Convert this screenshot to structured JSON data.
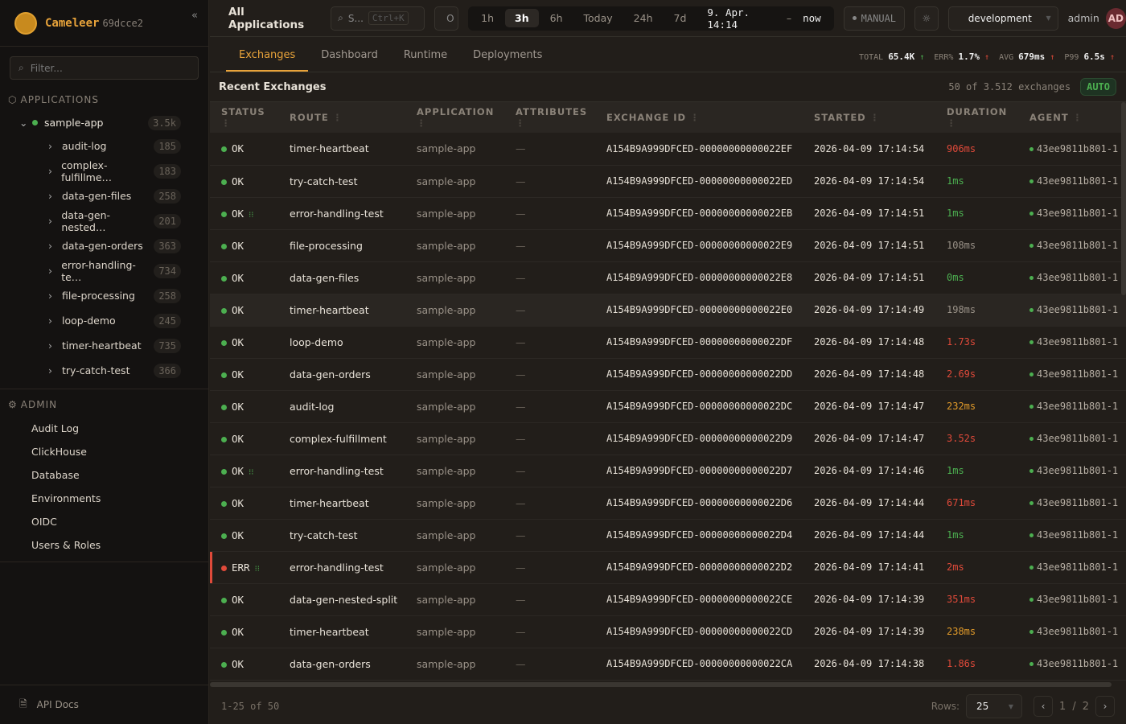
{
  "brand": {
    "name": "Cameleer",
    "version": "69dcce2"
  },
  "sidebar": {
    "filter_placeholder": "Filter...",
    "applications_label": "APPLICATIONS",
    "app": {
      "name": "sample-app",
      "count": "3.5k"
    },
    "routes": [
      {
        "name": "audit-log",
        "count": "185"
      },
      {
        "name": "complex-fulfillme…",
        "count": "183"
      },
      {
        "name": "data-gen-files",
        "count": "258"
      },
      {
        "name": "data-gen-nested…",
        "count": "201"
      },
      {
        "name": "data-gen-orders",
        "count": "363"
      },
      {
        "name": "error-handling-te…",
        "count": "734"
      },
      {
        "name": "file-processing",
        "count": "258"
      },
      {
        "name": "loop-demo",
        "count": "245"
      },
      {
        "name": "timer-heartbeat",
        "count": "735"
      },
      {
        "name": "try-catch-test",
        "count": "366"
      }
    ],
    "admin_label": "ADMIN",
    "admin_items": [
      "Audit Log",
      "ClickHouse",
      "Database",
      "Environments",
      "OIDC",
      "Users & Roles"
    ],
    "api_docs": "API Docs"
  },
  "header": {
    "title": "All Applications",
    "search_placeholder": "S...",
    "search_shortcut": "Ctrl+K",
    "status_label": "O",
    "ranges": [
      "1h",
      "3h",
      "6h",
      "Today",
      "24h",
      "7d"
    ],
    "active_range": "3h",
    "range_from": "9. Apr. 14:14",
    "range_sep": "–",
    "range_to": "now",
    "manual_label": "MANUAL",
    "environment": "development",
    "user": "admin",
    "avatar": "AD"
  },
  "tabs": [
    "Exchanges",
    "Dashboard",
    "Runtime",
    "Deployments"
  ],
  "active_tab": "Exchanges",
  "kpis": [
    {
      "label": "TOTAL",
      "value": "65.4K",
      "trend": "up",
      "color": "#4caf50"
    },
    {
      "label": "ERR%",
      "value": "1.7%",
      "trend": "up",
      "color": "#e04a3a"
    },
    {
      "label": "AVG",
      "value": "679ms",
      "trend": "up",
      "color": "#e04a3a"
    },
    {
      "label": "P99",
      "value": "6.5s",
      "trend": "up",
      "color": "#e04a3a"
    }
  ],
  "recent": {
    "title": "Recent Exchanges",
    "count": "50 of 3.512 exchanges",
    "auto": "AUTO"
  },
  "table": {
    "columns": [
      "STATUS",
      "ROUTE",
      "APPLICATION",
      "ATTRIBUTES",
      "EXCHANGE ID",
      "STARTED",
      "DURATION",
      "AGENT"
    ],
    "rows": [
      {
        "status": "OK",
        "trace": false,
        "route": "timer-heartbeat",
        "app": "sample-app",
        "attr": "—",
        "id": "A154B9A999DFCED-00000000000022EF",
        "started": "2026-04-09 17:14:54",
        "duration": "906ms",
        "dc": "red",
        "agent": "43ee9811b801-1"
      },
      {
        "status": "OK",
        "trace": false,
        "route": "try-catch-test",
        "app": "sample-app",
        "attr": "—",
        "id": "A154B9A999DFCED-00000000000022ED",
        "started": "2026-04-09 17:14:54",
        "duration": "1ms",
        "dc": "green",
        "agent": "43ee9811b801-1"
      },
      {
        "status": "OK",
        "trace": true,
        "route": "error-handling-test",
        "app": "sample-app",
        "attr": "—",
        "id": "A154B9A999DFCED-00000000000022EB",
        "started": "2026-04-09 17:14:51",
        "duration": "1ms",
        "dc": "green",
        "agent": "43ee9811b801-1"
      },
      {
        "status": "OK",
        "trace": false,
        "route": "file-processing",
        "app": "sample-app",
        "attr": "—",
        "id": "A154B9A999DFCED-00000000000022E9",
        "started": "2026-04-09 17:14:51",
        "duration": "108ms",
        "dc": "grey",
        "agent": "43ee9811b801-1"
      },
      {
        "status": "OK",
        "trace": false,
        "route": "data-gen-files",
        "app": "sample-app",
        "attr": "—",
        "id": "A154B9A999DFCED-00000000000022E8",
        "started": "2026-04-09 17:14:51",
        "duration": "0ms",
        "dc": "green",
        "agent": "43ee9811b801-1"
      },
      {
        "status": "OK",
        "trace": false,
        "route": "timer-heartbeat",
        "app": "sample-app",
        "attr": "—",
        "id": "A154B9A999DFCED-00000000000022E0",
        "started": "2026-04-09 17:14:49",
        "duration": "198ms",
        "dc": "grey",
        "agent": "43ee9811b801-1",
        "hl": true
      },
      {
        "status": "OK",
        "trace": false,
        "route": "loop-demo",
        "app": "sample-app",
        "attr": "—",
        "id": "A154B9A999DFCED-00000000000022DF",
        "started": "2026-04-09 17:14:48",
        "duration": "1.73s",
        "dc": "red",
        "agent": "43ee9811b801-1"
      },
      {
        "status": "OK",
        "trace": false,
        "route": "data-gen-orders",
        "app": "sample-app",
        "attr": "—",
        "id": "A154B9A999DFCED-00000000000022DD",
        "started": "2026-04-09 17:14:48",
        "duration": "2.69s",
        "dc": "red",
        "agent": "43ee9811b801-1"
      },
      {
        "status": "OK",
        "trace": false,
        "route": "audit-log",
        "app": "sample-app",
        "attr": "—",
        "id": "A154B9A999DFCED-00000000000022DC",
        "started": "2026-04-09 17:14:47",
        "duration": "232ms",
        "dc": "orange",
        "agent": "43ee9811b801-1"
      },
      {
        "status": "OK",
        "trace": false,
        "route": "complex-fulfillment",
        "app": "sample-app",
        "attr": "—",
        "id": "A154B9A999DFCED-00000000000022D9",
        "started": "2026-04-09 17:14:47",
        "duration": "3.52s",
        "dc": "red",
        "agent": "43ee9811b801-1"
      },
      {
        "status": "OK",
        "trace": true,
        "route": "error-handling-test",
        "app": "sample-app",
        "attr": "—",
        "id": "A154B9A999DFCED-00000000000022D7",
        "started": "2026-04-09 17:14:46",
        "duration": "1ms",
        "dc": "green",
        "agent": "43ee9811b801-1"
      },
      {
        "status": "OK",
        "trace": false,
        "route": "timer-heartbeat",
        "app": "sample-app",
        "attr": "—",
        "id": "A154B9A999DFCED-00000000000022D6",
        "started": "2026-04-09 17:14:44",
        "duration": "671ms",
        "dc": "red",
        "agent": "43ee9811b801-1"
      },
      {
        "status": "OK",
        "trace": false,
        "route": "try-catch-test",
        "app": "sample-app",
        "attr": "—",
        "id": "A154B9A999DFCED-00000000000022D4",
        "started": "2026-04-09 17:14:44",
        "duration": "1ms",
        "dc": "green",
        "agent": "43ee9811b801-1"
      },
      {
        "status": "ERR",
        "trace": true,
        "route": "error-handling-test",
        "app": "sample-app",
        "attr": "—",
        "id": "A154B9A999DFCED-00000000000022D2",
        "started": "2026-04-09 17:14:41",
        "duration": "2ms",
        "dc": "red",
        "agent": "43ee9811b801-1"
      },
      {
        "status": "OK",
        "trace": false,
        "route": "data-gen-nested-split",
        "app": "sample-app",
        "attr": "—",
        "id": "A154B9A999DFCED-00000000000022CE",
        "started": "2026-04-09 17:14:39",
        "duration": "351ms",
        "dc": "red",
        "agent": "43ee9811b801-1"
      },
      {
        "status": "OK",
        "trace": false,
        "route": "timer-heartbeat",
        "app": "sample-app",
        "attr": "—",
        "id": "A154B9A999DFCED-00000000000022CD",
        "started": "2026-04-09 17:14:39",
        "duration": "238ms",
        "dc": "orange",
        "agent": "43ee9811b801-1"
      },
      {
        "status": "OK",
        "trace": false,
        "route": "data-gen-orders",
        "app": "sample-app",
        "attr": "—",
        "id": "A154B9A999DFCED-00000000000022CA",
        "started": "2026-04-09 17:14:38",
        "duration": "1.86s",
        "dc": "red",
        "agent": "43ee9811b801-1"
      }
    ]
  },
  "footer": {
    "range": "1-25 of 50",
    "rows_label": "Rows:",
    "rows_value": "25",
    "page": "1",
    "page_sep": "/",
    "pages": "2"
  },
  "colors": {
    "accent": "#e8a33a",
    "ok": "#4caf50",
    "error": "#e04a3a",
    "warn": "#e09a2a"
  }
}
